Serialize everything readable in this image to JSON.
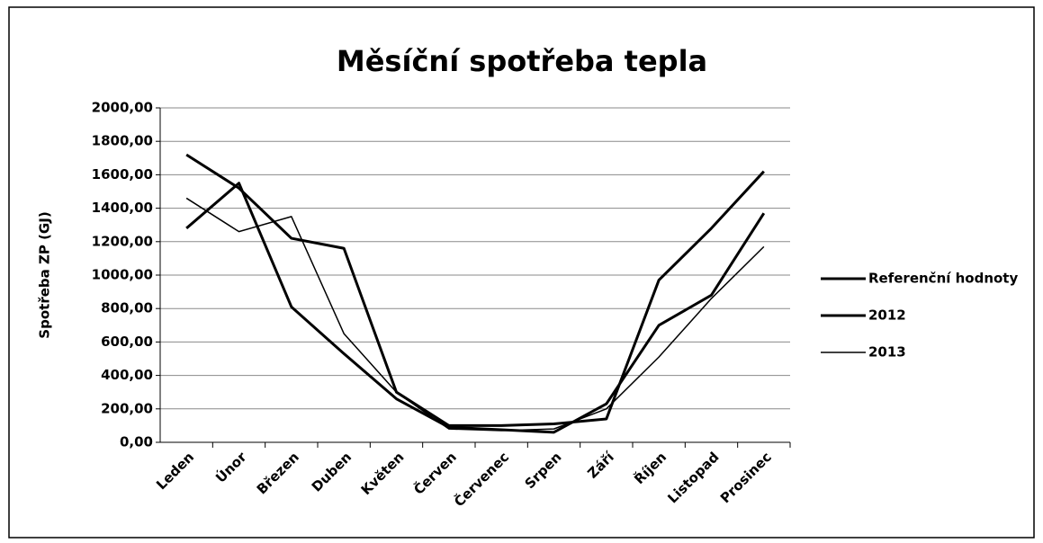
{
  "chart_data": {
    "type": "line",
    "title": "Měsíční spotřeba tepla",
    "ylabel": "Spotřeba ZP (GJ)",
    "categories": [
      "Leden",
      "Únor",
      "Březen",
      "Duben",
      "Květen",
      "Červen",
      "Červenec",
      "Srpen",
      "Září",
      "Říjen",
      "Listopad",
      "Prosinec"
    ],
    "series": [
      {
        "name": "Referenční hodnoty",
        "color": "#000000",
        "line_width": 3,
        "values": [
          1720,
          1520,
          1220,
          1160,
          300,
          100,
          100,
          110,
          140,
          970,
          1280,
          1620
        ]
      },
      {
        "name": "2012",
        "color": "#000000",
        "line_width": 3,
        "values": [
          1280,
          1550,
          810,
          530,
          260,
          90,
          75,
          60,
          230,
          700,
          880,
          1370
        ]
      },
      {
        "name": "2013",
        "color": "#000000",
        "line_width": 1.5,
        "values": [
          1460,
          1260,
          1350,
          650,
          300,
          80,
          70,
          80,
          200,
          510,
          860,
          1170
        ]
      }
    ],
    "ylim": [
      0,
      2000
    ],
    "yticks": [
      {
        "value": 0,
        "label": "0,00"
      },
      {
        "value": 200,
        "label": "200,00"
      },
      {
        "value": 400,
        "label": "400,00"
      },
      {
        "value": 600,
        "label": "600,00"
      },
      {
        "value": 800,
        "label": "800,00"
      },
      {
        "value": 1000,
        "label": "1000,00"
      },
      {
        "value": 1200,
        "label": "1200,00"
      },
      {
        "value": 1400,
        "label": "1400,00"
      },
      {
        "value": 1600,
        "label": "1600,00"
      },
      {
        "value": 1800,
        "label": "1800,00"
      },
      {
        "value": 2000,
        "label": "2000,00"
      }
    ],
    "grid": true,
    "legend": "right"
  }
}
